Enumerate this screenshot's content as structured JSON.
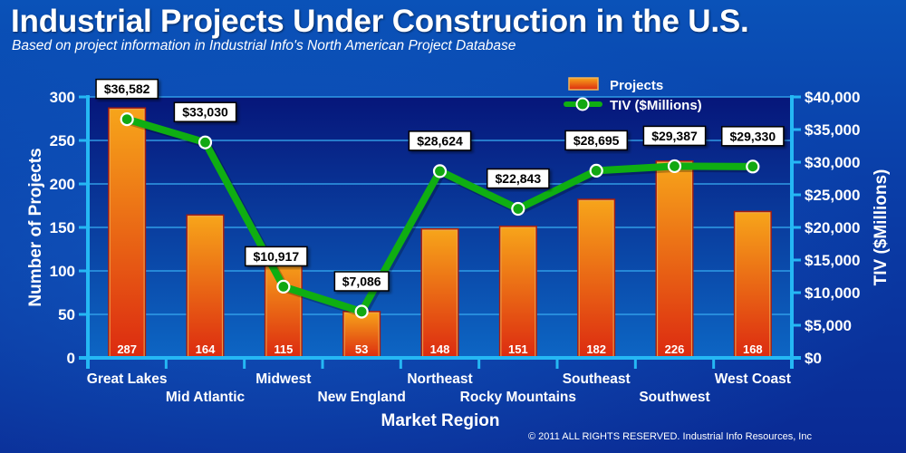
{
  "chart_data": {
    "type": "bar",
    "title": "Industrial Projects Under Construction in the U.S.",
    "subtitle": "Based on project information in Industrial Info's North American Project Database",
    "xlabel": "Market Region",
    "ylabel": "Number of Projects",
    "y2label": "TIV ($Millions)",
    "categories": [
      "Great Lakes",
      "Mid Atlantic",
      "Midwest",
      "New England",
      "Northeast",
      "Rocky Mountains",
      "Southeast",
      "Southwest",
      "West Coast"
    ],
    "series": [
      {
        "name": "Projects",
        "type": "bar",
        "axis": "left",
        "values": [
          287,
          164,
          115,
          53,
          148,
          151,
          182,
          226,
          168
        ],
        "labels": [
          "287",
          "164",
          "115",
          "53",
          "148",
          "151",
          "182",
          "226",
          "168"
        ],
        "color": "#e8541a"
      },
      {
        "name": "TIV ($Millions)",
        "type": "line",
        "axis": "right",
        "values": [
          36582,
          33030,
          10917,
          7086,
          28624,
          22843,
          28695,
          29387,
          29330
        ],
        "labels": [
          "$36,582",
          "$33,030",
          "$10,917",
          "$7,086",
          "$28,624",
          "$22,843",
          "$28,695",
          "$29,387",
          "$29,330"
        ],
        "color": "#0fae12"
      }
    ],
    "ylim": [
      0,
      300
    ],
    "yticks": [
      0,
      50,
      100,
      150,
      200,
      250,
      300
    ],
    "ytick_labels": [
      "0",
      "50",
      "100",
      "150",
      "200",
      "250",
      "300"
    ],
    "y2lim": [
      0,
      40000
    ],
    "y2ticks": [
      0,
      5000,
      10000,
      15000,
      20000,
      25000,
      30000,
      35000,
      40000
    ],
    "y2tick_labels": [
      "$0",
      "$5,000",
      "$10,000",
      "$15,000",
      "$20,000",
      "$25,000",
      "$30,000",
      "$35,000",
      "$40,000"
    ],
    "grid": true,
    "legend": {
      "position": "top-right",
      "entries": [
        "Projects",
        "TIV ($Millions)"
      ]
    },
    "colors": {
      "axis": "#25b8f4",
      "grid": "#35a6ee",
      "bar_top": "#f7a51a",
      "bar_bottom": "#dc2a10",
      "bar_border": "#a81c0c",
      "line": "#0fae12",
      "marker_fill": "#12a812",
      "marker_stroke": "#ffffff"
    }
  },
  "footer": {
    "copyright": "© 2011 ALL RIGHTS RESERVED. Industrial Info Resources, Inc"
  }
}
